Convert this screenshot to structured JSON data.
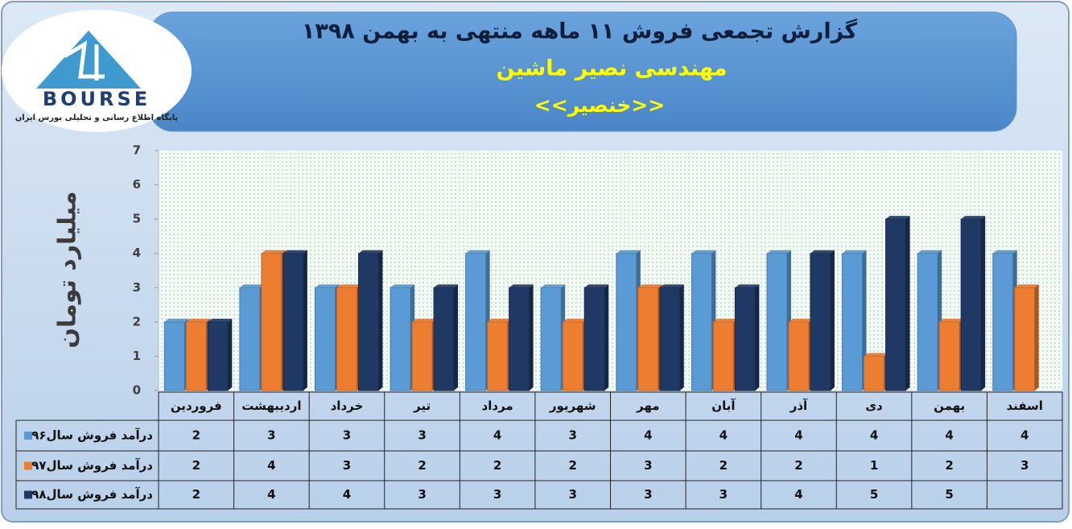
{
  "logo": {
    "name": "BOURSE",
    "caption": "پایگاه اطلاع رسانی و تحلیلی بورس ایران"
  },
  "chart_data": {
    "type": "bar",
    "title": "گزارش تجمعی فروش  ۱۱ ماهه منتهی به بهمن ۱۳۹۸",
    "subtitle": "مهندسی نصیر ماشین",
    "annotation": "<<خنصیر>>",
    "y_label": "میلیارد تومان",
    "categories": [
      "فروردین",
      "اردیبهشت",
      "خرداد",
      "تیر",
      "مرداد",
      "شهریور",
      "مهر",
      "آبان",
      "آذر",
      "دی",
      "بهمن",
      "اسفند"
    ],
    "series": [
      {
        "name": "درآمد فروش سال۹۶",
        "color": "#5b9bd5",
        "values": [
          2,
          3,
          3,
          3,
          4,
          3,
          4,
          4,
          4,
          4,
          4,
          4
        ]
      },
      {
        "name": "درآمد فروش سال۹۷",
        "color": "#ed7d31",
        "values": [
          2,
          4,
          3,
          2,
          2,
          2,
          3,
          2,
          2,
          1,
          2,
          3
        ]
      },
      {
        "name": "درآمد فروش سال۹۸",
        "color": "#1f3864",
        "values": [
          2,
          4,
          4,
          3,
          3,
          3,
          3,
          3,
          4,
          5,
          5,
          null
        ]
      }
    ],
    "ylim": [
      0,
      7
    ],
    "yticks": [
      0,
      1,
      2,
      3,
      4,
      5,
      6,
      7
    ],
    "grid": false
  }
}
